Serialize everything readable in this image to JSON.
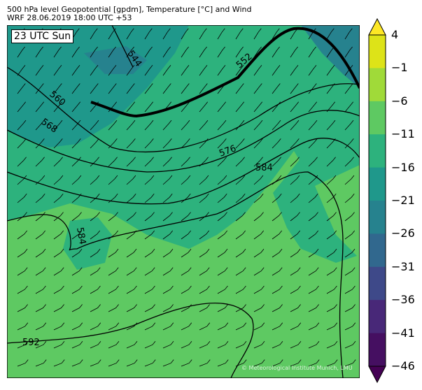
{
  "header": {
    "title": "500 hPa level Geopotential [gpdm], Temperature [°C] and Wind",
    "subtitle": "WRF 28.06.2019 18:00 UTC +53"
  },
  "map": {
    "time_label": "23 UTC Sun",
    "contour_labels": [
      "544",
      "552",
      "560",
      "568",
      "576",
      "584",
      "584",
      "592"
    ],
    "copyright": "© Meteorological Institute Munich, LMU"
  },
  "colorbar": {
    "ticks": [
      "4",
      "−1",
      "−6",
      "−11",
      "−16",
      "−21",
      "−26",
      "−31",
      "−36",
      "−41",
      "−46"
    ],
    "colors": [
      "#fde725",
      "#dde318",
      "#a0da39",
      "#5ec962",
      "#2db27d",
      "#1f988b",
      "#26828e",
      "#31688e",
      "#3e4989",
      "#482878",
      "#450f61",
      "#440154"
    ]
  }
}
